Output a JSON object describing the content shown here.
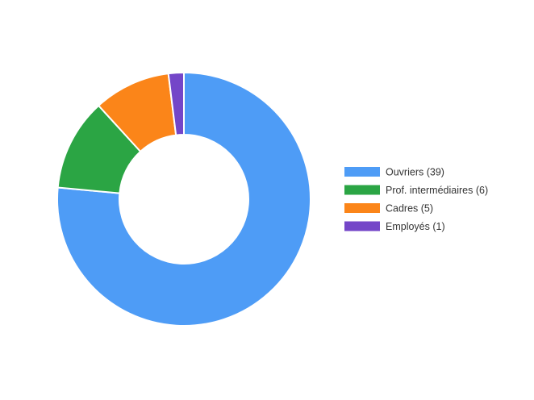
{
  "chart_data": {
    "type": "donut",
    "categories": [
      "Ouvriers (39)",
      "Prof. intermédiaires (6)",
      "Cadres (5)",
      "Employés (1)"
    ],
    "values": [
      39,
      6,
      5,
      1
    ],
    "colors": [
      "#4e9cf6",
      "#2ba544",
      "#fb8519",
      "#7446c8"
    ],
    "legend": "right"
  }
}
